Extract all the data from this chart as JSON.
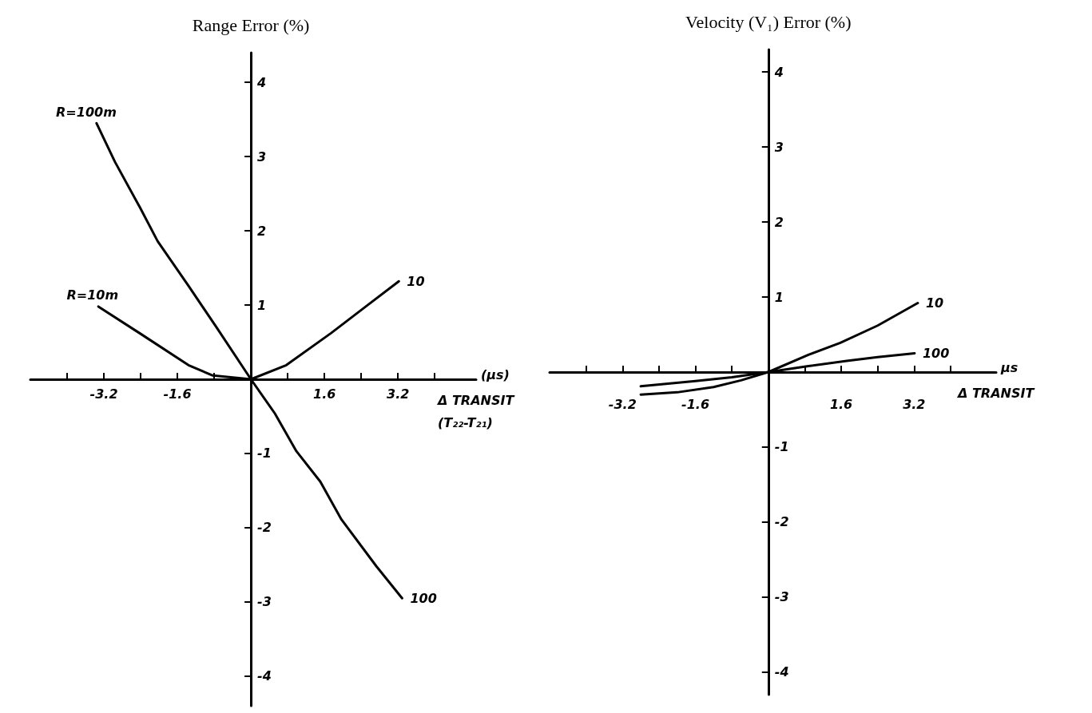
{
  "chart_data": [
    {
      "type": "line",
      "ylabel": "Range Error (%)",
      "xlabel": "Δ TRANSIT\n(T₂₂-T₂₁)",
      "annotations": [
        {
          "text": "R=100m",
          "x": -3.36,
          "y": 3.45
        },
        {
          "text": "R=10m",
          "x": -3.32,
          "y": 0.98
        },
        "(μs)"
      ],
      "xlim": [
        -4.8,
        4.9
      ],
      "ylim": [
        -4.4,
        4.4
      ],
      "xticks": [
        {
          "value": -4,
          "label": null
        },
        -3.2,
        {
          "value": -2.4,
          "label": null
        },
        -1.6,
        {
          "value": -0.8,
          "label": null
        },
        {
          "value": 0.8,
          "label": null
        },
        1.6,
        {
          "value": 2.4,
          "label": null
        },
        3.2,
        {
          "value": 4,
          "label": null
        }
      ],
      "yticks": [
        -4,
        -3,
        -2,
        -1,
        1,
        2,
        3,
        4
      ],
      "grid": false,
      "marker": "none",
      "line_style": "solid",
      "series": [
        {
          "name": "100",
          "color": "#000000",
          "x": [
            -3.36,
            -2.96,
            -2.42,
            -2.03,
            -1.36,
            -0.75,
            0,
            0.52,
            0.99,
            1.51,
            1.97,
            2.73,
            3.29
          ],
          "values": [
            3.45,
            2.93,
            2.32,
            1.86,
            1.26,
            0.7,
            0,
            -0.46,
            -0.97,
            -1.38,
            -1.89,
            -2.52,
            -2.95
          ]
        },
        {
          "name": "10",
          "color": "#000000",
          "x": [
            -3.32,
            -2.42,
            -1.36,
            -0.83,
            0,
            0.77,
            1.74,
            2.5,
            3.22
          ],
          "values": [
            0.98,
            0.62,
            0.19,
            0.05,
            0,
            0.19,
            0.62,
            0.98,
            1.32
          ]
        }
      ]
    },
    {
      "type": "line",
      "ylabel": "Velocity (V₁) Error (%)",
      "xlabel": "Δ TRANSIT",
      "annotations": [
        "μs"
      ],
      "xlim": [
        -4.8,
        5.0
      ],
      "ylim": [
        -4.3,
        4.3
      ],
      "xticks": [
        {
          "value": -4,
          "label": null
        },
        -3.2,
        {
          "value": -2.4,
          "label": null
        },
        -1.6,
        {
          "value": -0.8,
          "label": null
        },
        {
          "value": 0.8,
          "label": null
        },
        1.6,
        {
          "value": 2.4,
          "label": null
        },
        3.2,
        {
          "value": 4,
          "label": null
        }
      ],
      "yticks": [
        -4,
        -3,
        -2,
        -1,
        1,
        2,
        3,
        4
      ],
      "grid": false,
      "marker": "none",
      "line_style": "solid",
      "series": [
        {
          "name": "10",
          "color": "#000000",
          "x": [
            -2.8,
            -2.0,
            -1.2,
            -0.6,
            0,
            0.88,
            1.58,
            2.4,
            3.28
          ],
          "values": [
            -0.3,
            -0.27,
            -0.2,
            -0.11,
            0,
            0.23,
            0.39,
            0.62,
            0.92
          ]
        },
        {
          "name": "100",
          "color": "#000000",
          "x": [
            -2.8,
            -1.6,
            -0.8,
            0,
            0.88,
            1.72,
            2.4,
            3.21
          ],
          "values": [
            -0.19,
            -0.12,
            -0.07,
            0,
            0.08,
            0.15,
            0.2,
            0.25
          ]
        }
      ]
    }
  ]
}
